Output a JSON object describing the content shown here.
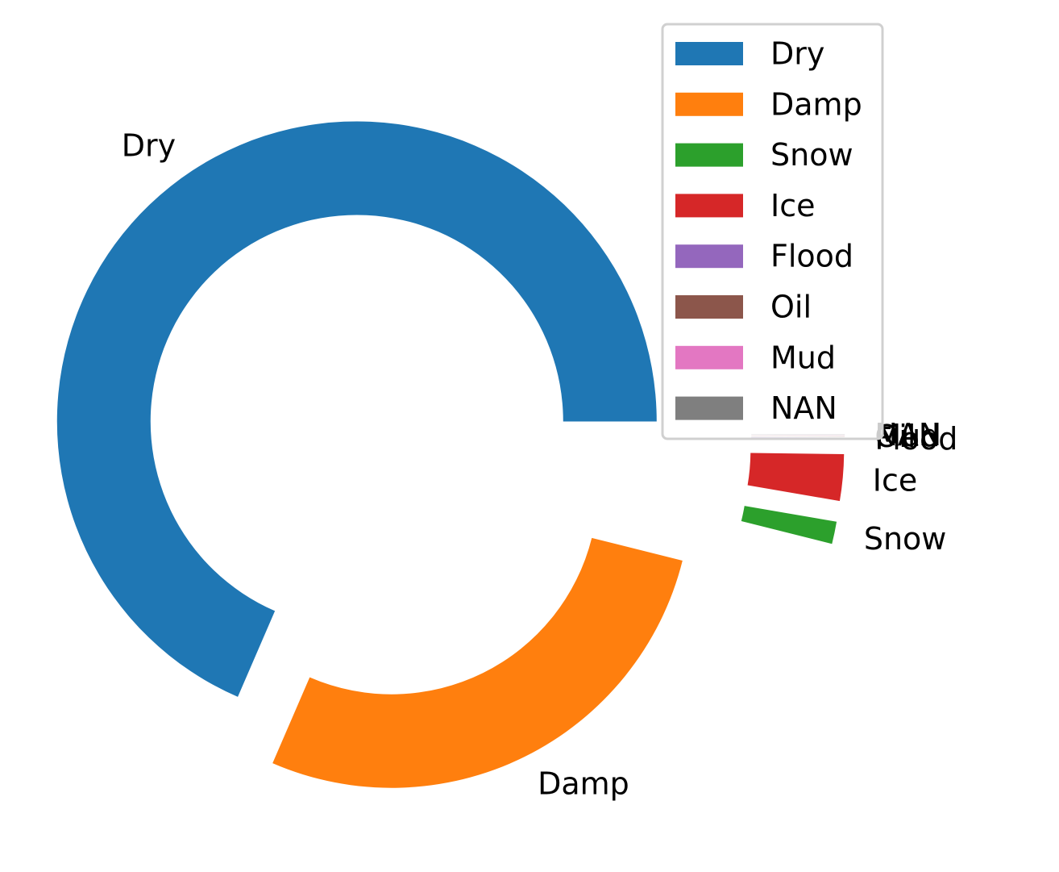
{
  "chart_data": {
    "type": "pie",
    "style": "donut",
    "title": "",
    "categories": [
      "Dry",
      "Damp",
      "Snow",
      "Ice",
      "Flood",
      "Oil",
      "Mud",
      "NAN"
    ],
    "values": [
      68.5,
      27.6,
      1.2,
      2.5,
      0.1,
      0.04,
      0.02,
      0.04
    ],
    "colors": [
      "#1f77b4",
      "#ff7f0e",
      "#2ca02c",
      "#d62728",
      "#9467bd",
      "#8c564b",
      "#e377c2",
      "#7f7f7f"
    ],
    "explode": [
      0.05,
      0.2,
      0.6,
      0.6,
      0.6,
      0.6,
      0.6,
      0.6
    ],
    "legend": {
      "position": "top-right",
      "entries": [
        "Dry",
        "Damp",
        "Snow",
        "Ice",
        "Flood",
        "Oil",
        "Mud",
        "NAN"
      ]
    }
  }
}
